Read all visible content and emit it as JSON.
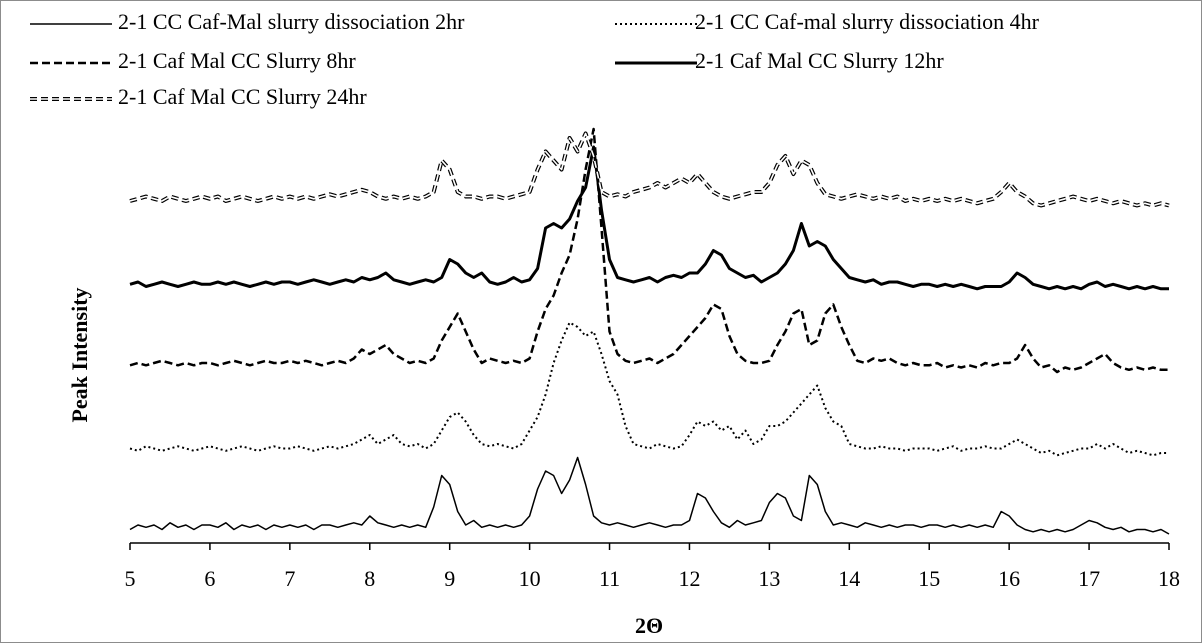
{
  "chart_data": {
    "type": "line",
    "xlabel": "2Θ",
    "ylabel": "Peak Intensity",
    "xlim": [
      5,
      18
    ],
    "xticks": [
      5,
      6,
      7,
      8,
      9,
      10,
      11,
      12,
      13,
      14,
      15,
      16,
      17,
      18
    ],
    "ylim": [
      0,
      100
    ],
    "x": [
      5,
      5.1,
      5.2,
      5.3,
      5.4,
      5.5,
      5.6,
      5.7,
      5.8,
      5.9,
      6,
      6.1,
      6.2,
      6.3,
      6.4,
      6.5,
      6.6,
      6.7,
      6.8,
      6.9,
      7,
      7.1,
      7.2,
      7.3,
      7.4,
      7.5,
      7.6,
      7.7,
      7.8,
      7.9,
      8,
      8.1,
      8.2,
      8.3,
      8.4,
      8.5,
      8.6,
      8.7,
      8.8,
      8.9,
      9,
      9.1,
      9.2,
      9.3,
      9.4,
      9.5,
      9.6,
      9.7,
      9.8,
      9.9,
      10,
      10.1,
      10.2,
      10.3,
      10.4,
      10.5,
      10.6,
      10.7,
      10.8,
      10.9,
      11,
      11.1,
      11.2,
      11.3,
      11.4,
      11.5,
      11.6,
      11.7,
      11.8,
      11.9,
      12,
      12.1,
      12.2,
      12.3,
      12.4,
      12.5,
      12.6,
      12.7,
      12.8,
      12.9,
      13,
      13.1,
      13.2,
      13.3,
      13.4,
      13.5,
      13.6,
      13.7,
      13.8,
      13.9,
      14,
      14.1,
      14.2,
      14.3,
      14.4,
      14.5,
      14.6,
      14.7,
      14.8,
      14.9,
      15,
      15.1,
      15.2,
      15.3,
      15.4,
      15.5,
      15.6,
      15.7,
      15.8,
      15.9,
      16,
      16.1,
      16.2,
      16.3,
      16.4,
      16.5,
      16.6,
      16.7,
      16.8,
      16.9,
      17,
      17.1,
      17.2,
      17.3,
      17.4,
      17.5,
      17.6,
      17.7,
      17.8,
      17.9,
      18
    ],
    "series": [
      {
        "name": "2-1 CC Caf-Mal slurry dissociation 2hr",
        "color": "#000000",
        "line_style": "solid",
        "line_width": 1.5,
        "values": [
          3,
          4,
          3.5,
          4,
          3,
          4.5,
          3.5,
          4,
          3,
          4,
          4,
          3.5,
          4.5,
          3,
          4,
          3.5,
          4,
          3,
          4,
          3.5,
          4,
          3.5,
          4,
          3,
          4,
          4,
          3.5,
          4,
          4.5,
          4,
          6,
          4.5,
          4,
          3.5,
          4,
          3.5,
          4,
          3.5,
          8,
          15,
          13,
          7,
          4,
          5,
          3.5,
          4,
          3.5,
          4,
          3.5,
          4,
          6,
          12,
          16,
          15,
          11,
          14,
          19,
          13,
          6,
          4.5,
          4,
          4.5,
          4,
          3.5,
          4,
          4.5,
          4,
          3.5,
          4,
          4,
          5,
          11,
          10,
          7,
          4.5,
          3.5,
          5,
          4,
          4.5,
          5,
          9,
          11,
          10,
          6,
          5,
          15,
          13,
          7,
          4,
          4.5,
          4,
          3.5,
          4.5,
          4,
          3.5,
          4,
          3.5,
          4,
          4,
          3.5,
          4,
          4,
          3.5,
          4,
          3.5,
          4,
          3.5,
          4,
          3.5,
          7,
          6,
          4,
          3,
          2.5,
          3,
          2.5,
          3,
          2.5,
          3,
          4,
          5,
          4.5,
          3.5,
          3,
          3.5,
          2.5,
          3,
          3,
          2.5,
          3,
          2
        ]
      },
      {
        "name": "2-1 CC Caf-mal slurry dissociation 4hr",
        "color": "#000000",
        "line_style": "dotted",
        "line_width": 2,
        "values": [
          21,
          20.5,
          21.5,
          21,
          20.5,
          21,
          21.5,
          21,
          20.5,
          21,
          21.5,
          21,
          20.5,
          21,
          21.5,
          21,
          20.5,
          21,
          21.5,
          21,
          21,
          21.5,
          21,
          20.5,
          21,
          21.5,
          21,
          21.5,
          22,
          23,
          24,
          22,
          23,
          24,
          22,
          21.5,
          22,
          21,
          22,
          25,
          28,
          29,
          27,
          24,
          22,
          21.5,
          22,
          21.5,
          21,
          22,
          25,
          28,
          33,
          40,
          45,
          49,
          48,
          46,
          47,
          42,
          36,
          33,
          26,
          22,
          21.5,
          21,
          22,
          21.5,
          21,
          21.5,
          24,
          27,
          26,
          27,
          25,
          26,
          23,
          25,
          22,
          23,
          26,
          26,
          27,
          29,
          31,
          33,
          35,
          30,
          27,
          26,
          22,
          21.5,
          21,
          21,
          21.5,
          21,
          21,
          20.5,
          21,
          21,
          21,
          20.5,
          21,
          21.5,
          20.5,
          21,
          21,
          21.5,
          21,
          21,
          22,
          23,
          22,
          21,
          20,
          20.5,
          19.5,
          20,
          20.5,
          21,
          21,
          22,
          21,
          22,
          21,
          20,
          20.5,
          20,
          19.5,
          20,
          20
        ]
      },
      {
        "name": "2-1 Caf Mal CC Slurry 8hr",
        "color": "#000000",
        "line_style": "dashed",
        "line_width": 2.5,
        "values": [
          39.5,
          40,
          39.5,
          40,
          40.5,
          40,
          39.5,
          40,
          39.5,
          40,
          40,
          39.5,
          40,
          40.5,
          40,
          39.5,
          40,
          40.5,
          40,
          40,
          40.5,
          40,
          40.5,
          40,
          39.5,
          40,
          40.5,
          40,
          41,
          43,
          42,
          43,
          44,
          42,
          41,
          40,
          40.5,
          40,
          41,
          45,
          48,
          51,
          47,
          43,
          40,
          41,
          40.5,
          40,
          40.5,
          40,
          41,
          47,
          52,
          55,
          60,
          64,
          72,
          83,
          92,
          70,
          47,
          42,
          40.5,
          40,
          40.5,
          41,
          40,
          41,
          42,
          44,
          46,
          48,
          50,
          53,
          52,
          46,
          42,
          40.5,
          40,
          40,
          40.5,
          44,
          47,
          51,
          52,
          44,
          45,
          51,
          53,
          48,
          44,
          40.5,
          40,
          41,
          40.5,
          41,
          40,
          39.5,
          40,
          39.5,
          39.5,
          40,
          39,
          39.5,
          39,
          39.5,
          39,
          40,
          39.5,
          40,
          40,
          41,
          44,
          41,
          39,
          39.5,
          38,
          39,
          38.5,
          39,
          40,
          41,
          42,
          40,
          39,
          38.5,
          39,
          38.5,
          39,
          38.5,
          38.5
        ]
      },
      {
        "name": "2-1 Caf Mal CC Slurry 12hr",
        "color": "#000000",
        "line_style": "solid",
        "line_width": 3,
        "values": [
          57.5,
          58,
          57,
          57.5,
          58,
          57.5,
          57,
          57.5,
          58,
          57.5,
          57.5,
          58,
          57.5,
          58,
          57.5,
          57,
          57.5,
          58,
          57.5,
          58,
          58,
          57.5,
          58,
          58.5,
          58,
          57.5,
          58,
          58.5,
          58,
          59,
          58.5,
          59,
          60,
          58.5,
          58,
          57.5,
          58,
          58.5,
          58,
          59,
          63,
          62,
          60,
          59,
          60,
          58,
          57.5,
          58,
          59,
          58,
          58.5,
          61,
          70,
          71,
          70,
          72,
          76,
          79,
          88,
          74,
          63,
          59,
          58.5,
          58,
          58.5,
          59,
          58,
          59,
          59.5,
          59,
          60,
          60,
          62,
          65,
          64,
          61,
          60,
          59,
          59.5,
          58,
          59,
          60,
          62,
          65,
          71,
          66,
          67,
          66,
          63,
          61,
          59,
          58.5,
          58,
          58.5,
          57.5,
          58,
          58,
          57.5,
          57,
          57.5,
          57.5,
          57,
          57.5,
          57,
          57.5,
          57,
          56.5,
          57,
          57,
          57,
          58,
          60,
          59,
          57.5,
          57,
          56.5,
          57,
          56.5,
          57,
          56.5,
          57.5,
          58,
          57,
          57.5,
          57,
          56.5,
          57,
          56.5,
          57,
          56.5,
          56.5
        ]
      },
      {
        "name": "2-1 Caf Mal CC Slurry 24hr",
        "color": "#000000",
        "line_style": "double-dashed",
        "line_width": 4,
        "values": [
          76,
          76.5,
          77,
          76.5,
          76,
          77,
          76.5,
          76,
          76.5,
          77,
          76.5,
          77,
          76,
          76.5,
          77,
          76.5,
          76,
          76.5,
          77,
          76.5,
          77,
          76.5,
          77,
          76.5,
          77,
          77.5,
          77,
          77.5,
          78,
          78.5,
          78,
          77,
          76.5,
          77,
          76.5,
          77,
          76.5,
          77,
          78,
          85,
          83,
          78,
          77,
          77,
          76.5,
          77,
          77,
          76.5,
          77,
          77.5,
          78,
          83,
          87,
          85,
          83,
          90,
          87,
          91,
          86,
          78,
          77,
          77.5,
          77,
          78,
          78.5,
          79,
          80,
          79,
          80,
          81,
          80,
          82,
          80,
          78,
          77,
          76.5,
          77,
          77.5,
          78,
          78,
          80,
          84,
          86,
          82,
          85,
          84,
          80,
          77.5,
          77,
          76.5,
          77,
          77.5,
          77,
          76.5,
          77,
          76.5,
          77,
          76,
          76.5,
          76,
          76.5,
          76,
          76.5,
          76,
          76.5,
          76,
          75.5,
          76,
          76.5,
          78,
          80,
          78,
          77,
          75.5,
          75,
          75.5,
          76,
          76.5,
          77,
          76.5,
          76,
          76.5,
          76,
          75.5,
          76,
          75.5,
          75,
          75.5,
          75,
          75.5,
          75
        ]
      }
    ]
  }
}
